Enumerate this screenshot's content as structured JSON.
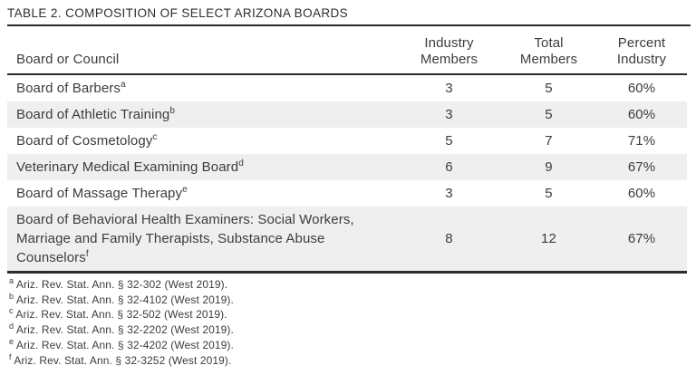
{
  "page": {
    "title": "TABLE 2. COMPOSITION OF SELECT ARIZONA BOARDS"
  },
  "table": {
    "header": {
      "board": "Board or Council",
      "industry": {
        "l1": "Industry",
        "l2": "Members"
      },
      "total": {
        "l1": "Total",
        "l2": "Members"
      },
      "percent": {
        "l1": "Percent",
        "l2": "Industry"
      }
    },
    "rows": [
      {
        "board": "Board of Barbers",
        "note": "a",
        "industry": "3",
        "total": "5",
        "percent": "60%"
      },
      {
        "board": "Board of Athletic Training",
        "note": "b",
        "industry": "3",
        "total": "5",
        "percent": "60%"
      },
      {
        "board": "Board of Cosmetology",
        "note": "c",
        "industry": "5",
        "total": "7",
        "percent": "71%"
      },
      {
        "board": "Veterinary Medical Examining Board",
        "note": "d",
        "industry": "6",
        "total": "9",
        "percent": "67%"
      },
      {
        "board": "Board of Massage Therapy",
        "note": "e",
        "industry": "3",
        "total": "5",
        "percent": "60%"
      },
      {
        "board": "Board of Behavioral Health Examiners: Social Workers, Marriage and Family Therapists, Substance Abuse Counselors",
        "note": "f",
        "industry": "8",
        "total": "12",
        "percent": "67%"
      }
    ],
    "footnotes": [
      {
        "marker": "a",
        "text": "Ariz. Rev. Stat. Ann. § 32-302 (West 2019)."
      },
      {
        "marker": "b",
        "text": "Ariz. Rev. Stat. Ann. § 32-4102 (West 2019)."
      },
      {
        "marker": "c",
        "text": "Ariz. Rev. Stat. Ann. § 32-502 (West 2019)."
      },
      {
        "marker": "d",
        "text": "Ariz. Rev. Stat. Ann. § 32-2202 (West 2019)."
      },
      {
        "marker": "e",
        "text": "Ariz. Rev. Stat. Ann. § 32-4202 (West 2019)."
      },
      {
        "marker": "f",
        "text": "Ariz. Rev. Stat. Ann. § 32-3252 (West 2019)."
      }
    ]
  },
  "colors": {
    "background": "#ffffff",
    "text": "#3c3c3c",
    "title_text": "#2e2e2e",
    "rule": "#2b2b2b",
    "row_stripe": "#efefef"
  }
}
